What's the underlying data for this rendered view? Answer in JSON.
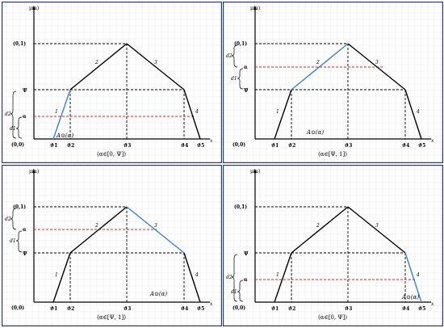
{
  "panels": [
    {
      "id": "top-left",
      "y_axis_label": "μ(a)",
      "x_axis_label": "x",
      "peak_label": "(0,1)",
      "origin_label": "(0,0)",
      "psi_label": "Ψ",
      "alpha_label": "α",
      "d1_label": "d1",
      "d2_label": "d2",
      "x_ticks": [
        "ϑ1",
        "ϑ2",
        "ϑ3",
        "ϑ4",
        "ϑ5"
      ],
      "segment_labels": [
        "1",
        "2",
        "3",
        "4"
      ],
      "function_label": "A⊙(α)",
      "caption": "(α∈[0, Ψ])",
      "blue_segment": 1
    },
    {
      "id": "top-right",
      "y_axis_label": "μ(a)",
      "x_axis_label": "x",
      "peak_label": "(0,1)",
      "origin_label": "(0,0)",
      "psi_label": "Ψ",
      "alpha_label": "α",
      "d1_label": "d1",
      "d2_label": "d2",
      "x_ticks": [
        "ϑ1",
        "ϑ2",
        "ϑ3",
        "ϑ4",
        "ϑ5"
      ],
      "segment_labels": [
        "1",
        "2",
        "3",
        "4"
      ],
      "function_label": "A⊙(α)",
      "caption": "(α∈[Ψ, 1])",
      "blue_segment": 2
    },
    {
      "id": "bottom-left",
      "y_axis_label": "μ(a)",
      "x_axis_label": "x",
      "peak_label": "(0,1)",
      "origin_label": "(0,0)",
      "psi_label": "Ψ",
      "alpha_label": "α",
      "d1_label": "d1",
      "d2_label": "d2",
      "x_ticks": [
        "ϑ1",
        "ϑ2",
        "ϑ3",
        "ϑ4",
        "ϑ5"
      ],
      "segment_labels": [
        "1",
        "2",
        "3",
        "4"
      ],
      "function_label": "A⊙(α)",
      "caption": "(α∈[Ψ, 1])",
      "blue_segment": 3
    },
    {
      "id": "bottom-right",
      "y_axis_label": "μ(a)",
      "x_axis_label": "x",
      "peak_label": "(0,1)",
      "origin_label": "(0,0)",
      "psi_label": "Ψ",
      "alpha_label": "α",
      "d1_label": "d1",
      "d2_label": "d2",
      "x_ticks": [
        "ϑ1",
        "ϑ2",
        "ϑ3",
        "ϑ4",
        "ϑ5"
      ],
      "segment_labels": [
        "1",
        "2",
        "3",
        "4"
      ],
      "function_label": "A⊙(α)",
      "caption": "(α∈[0, Ψ])",
      "blue_segment": 4
    }
  ],
  "colors": {
    "blue_segment": "#3b7fd0",
    "alpha_level_line": "#e02020",
    "frame": "#2d3a6e"
  }
}
